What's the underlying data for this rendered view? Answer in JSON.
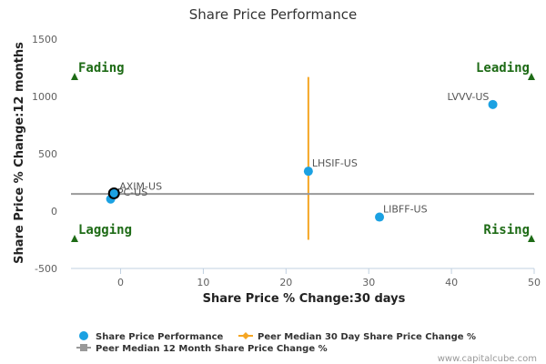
{
  "chart_data": {
    "type": "scatter",
    "title": "Share Price Performance",
    "xlabel": "Share Price % Change:30 days",
    "ylabel": "Share Price % Change:12 months",
    "xlim": [
      -6,
      50
    ],
    "ylim": [
      -500,
      1500
    ],
    "xticks": [
      0,
      10,
      20,
      30,
      40,
      50
    ],
    "yticks": [
      -500,
      0,
      500,
      1000,
      1500
    ],
    "x_tick_labels": [
      "0",
      "10",
      "20",
      "30",
      "40",
      "50"
    ],
    "y_tick_labels": [
      "-500",
      "0",
      "500",
      "1000",
      "1500"
    ],
    "gridlines": "none",
    "legend_position": "bottom-left",
    "series": [
      {
        "name": "Share Price Performance",
        "color": "#1ba1e2",
        "points": [
          {
            "label": "LVVV-US",
            "x": 45.0,
            "y": 930
          },
          {
            "label": "LHSIF-US",
            "x": 22.7,
            "y": 348
          },
          {
            "label": "LIBFF-US",
            "x": 31.3,
            "y": -52
          },
          {
            "label": "IPC-US",
            "x": -1.2,
            "y": 105
          },
          {
            "label": "AXIM-US",
            "x": -0.8,
            "y": 155
          }
        ]
      }
    ],
    "reference_lines": [
      {
        "name": "Peer Median 30 Day Share Price Change %",
        "orientation": "vertical",
        "value": 22.7,
        "range": [
          -250,
          1170
        ],
        "color": "#f5a623"
      },
      {
        "name": "Peer Median 12 Month Share Price Change %",
        "orientation": "horizontal",
        "value": 150,
        "color": "#999999"
      }
    ],
    "quadrants": [
      {
        "label": "Fading",
        "corner": "top-left"
      },
      {
        "label": "Leading",
        "corner": "top-right"
      },
      {
        "label": "Lagging",
        "corner": "bottom-left"
      },
      {
        "label": "Rising",
        "corner": "bottom-right"
      }
    ],
    "quadrant_color": "#1e6b16",
    "highlighted_point": "AXIM-US"
  },
  "legend": [
    {
      "label": "Share Price Performance",
      "marker": "circle",
      "color": "#1ba1e2"
    },
    {
      "label": "Peer Median 30 Day Share Price Change %",
      "marker": "line-diamond",
      "color": "#f5a623"
    },
    {
      "label": "Peer Median 12 Month Share Price Change %",
      "marker": "line-square",
      "color": "#999999"
    }
  ],
  "credit": "www.capitalcube.com"
}
